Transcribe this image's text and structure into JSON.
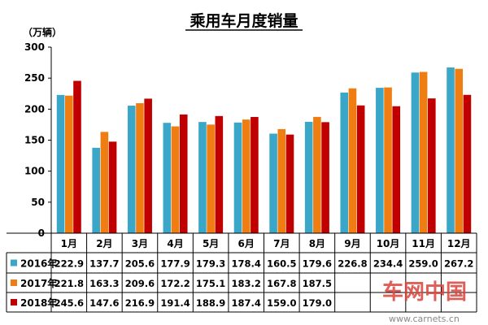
{
  "chart_data": {
    "type": "bar",
    "title": "乘用车月度销量",
    "ylabel": "（万辆）",
    "ylim": [
      0,
      300
    ],
    "yticks": [
      0,
      50,
      100,
      150,
      200,
      250,
      300
    ],
    "categories": [
      "1月",
      "2月",
      "3月",
      "4月",
      "5月",
      "6月",
      "7月",
      "8月",
      "9月",
      "10月",
      "11月",
      "12月"
    ],
    "grid": false,
    "legend_placement": "table-left",
    "series": [
      {
        "name": "2016年",
        "color": "#3aa6c8",
        "values": [
          222.9,
          137.7,
          205.6,
          177.9,
          179.3,
          178.4,
          160.5,
          179.6,
          226.8,
          234.4,
          259.0,
          267.2
        ],
        "labels": [
          "222.9",
          "137.7",
          "205.6",
          "177.9",
          "179.3",
          "178.4",
          "160.5",
          "179.6",
          "226.8",
          "234.4",
          "259.0",
          "267.2"
        ]
      },
      {
        "name": "2017年",
        "color": "#ef7d12",
        "values": [
          221.8,
          163.3,
          209.6,
          172.2,
          175.1,
          183.2,
          167.8,
          187.5,
          233.5,
          235.0,
          260.0,
          265.0
        ],
        "labels": [
          "221.8",
          "163.3",
          "209.6",
          "172.2",
          "175.1",
          "183.2",
          "167.8",
          "187.5",
          "",
          "",
          "",
          ""
        ]
      },
      {
        "name": "2018年",
        "color": "#c00000",
        "values": [
          245.6,
          147.6,
          216.9,
          191.4,
          188.9,
          187.4,
          159.0,
          179.0,
          206.0,
          204.7,
          217.3,
          223.0
        ],
        "labels": [
          "245.6",
          "147.6",
          "216.9",
          "191.4",
          "188.9",
          "187.4",
          "159.0",
          "179.0",
          "",
          "",
          "",
          ""
        ]
      }
    ]
  },
  "watermark": {
    "brand": "车网中国",
    "url": "www.carnets.cn"
  }
}
